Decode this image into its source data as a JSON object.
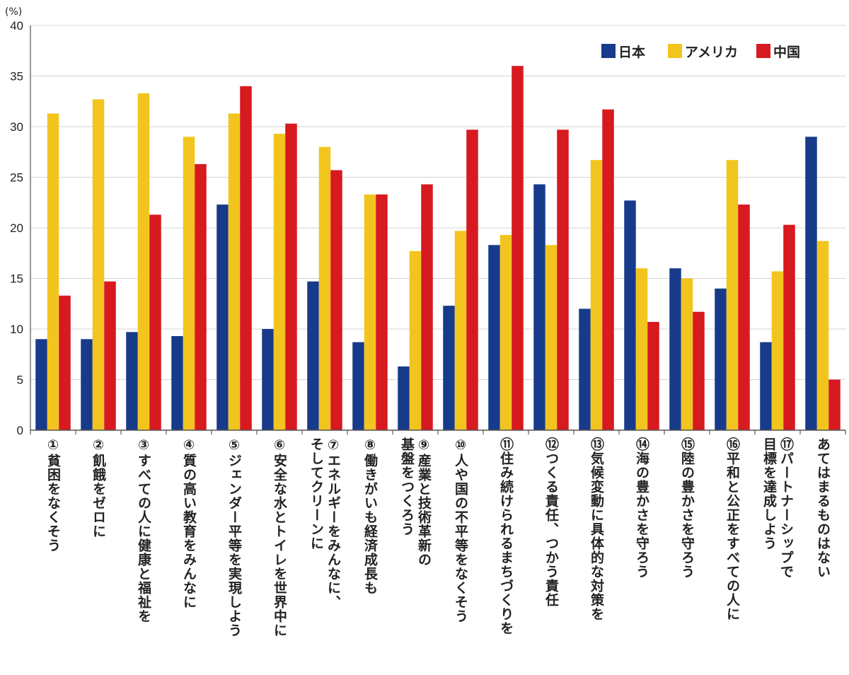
{
  "chart_data": {
    "type": "bar",
    "unit_label": "(%)",
    "ylim": [
      0,
      40
    ],
    "yticks": [
      "0",
      "5",
      "10",
      "15",
      "20",
      "25",
      "30",
      "35",
      "40"
    ],
    "grid": true,
    "legend_position": "top-right",
    "categories": [
      "①貧困をなくそう",
      "②飢餓をゼロに",
      "③すべての人に健康と福祉を",
      "④質の高い教育をみんなに",
      "⑤ジェンダー平等を実現しよう",
      "⑥安全な水とトイレを世界中に",
      "⑦エネルギーをみんなに、\nそしてクリーンに",
      "⑧働きがいも経済成長も",
      "⑨産業と技術革新の\n基盤をつくろう",
      "⑩人や国の不平等をなくそう",
      "⑪住み続けられるまちづくりを",
      "⑫つくる責任、つかう責任",
      "⑬気候変動に具体的な対策を",
      "⑭海の豊かさを守ろう",
      "⑮陸の豊かさを守ろう",
      "⑯平和と公正をすべての人に",
      "⑰パートナーシップで\n目標を達成しよう",
      "あてはまるものはない"
    ],
    "series": [
      {
        "name": "日本",
        "color": "#173b8a",
        "values": [
          9.0,
          9.0,
          9.7,
          9.3,
          22.3,
          10.0,
          14.7,
          8.7,
          6.3,
          12.3,
          18.3,
          24.3,
          12.0,
          22.7,
          16.0,
          14.0,
          8.7,
          29.0
        ]
      },
      {
        "name": "アメリカ",
        "color": "#f2c51e",
        "values": [
          31.3,
          32.7,
          33.3,
          29.0,
          31.3,
          29.3,
          28.0,
          23.3,
          17.7,
          19.7,
          19.3,
          18.3,
          26.7,
          16.0,
          15.0,
          26.7,
          15.7,
          18.7
        ]
      },
      {
        "name": "中国",
        "color": "#d71920",
        "values": [
          13.3,
          14.7,
          21.3,
          26.3,
          34.0,
          30.3,
          25.7,
          23.3,
          24.3,
          29.7,
          36.0,
          29.7,
          31.7,
          10.7,
          11.7,
          22.3,
          20.3,
          5.0
        ]
      }
    ]
  }
}
